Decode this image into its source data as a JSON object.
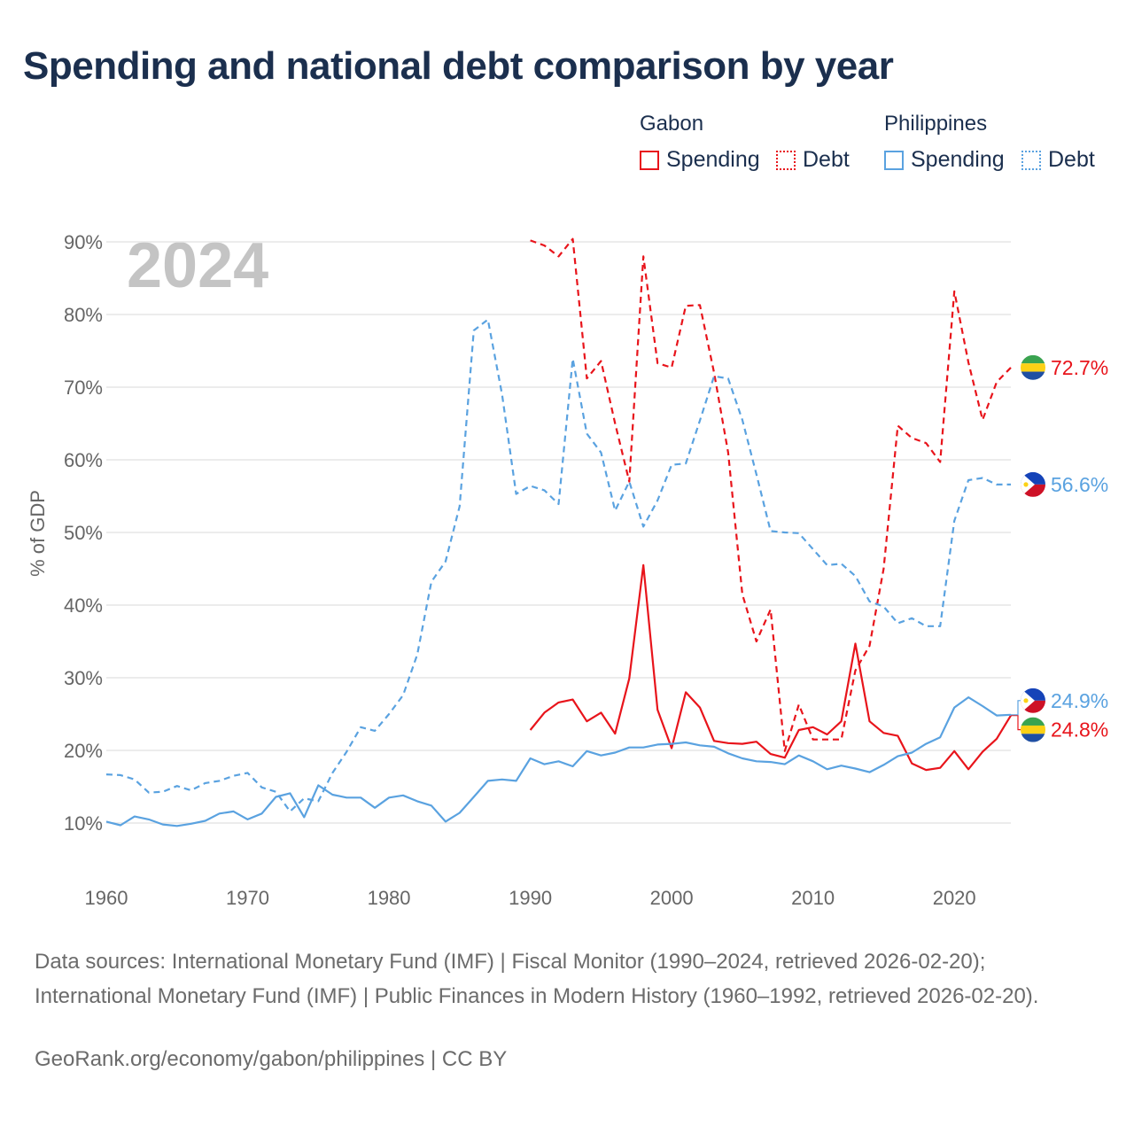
{
  "title": "Spending and national debt comparison by year",
  "legend": {
    "groups": [
      {
        "country": "Gabon",
        "color": "#e8141b",
        "items": [
          {
            "label": "Spending",
            "style": "solid"
          },
          {
            "label": "Debt",
            "style": "dotted"
          }
        ]
      },
      {
        "country": "Philippines",
        "color": "#5aa2e0",
        "items": [
          {
            "label": "Spending",
            "style": "solid"
          },
          {
            "label": "Debt",
            "style": "dotted"
          }
        ]
      }
    ]
  },
  "footer": {
    "sources": "Data sources: International Monetary Fund (IMF) | Fiscal Monitor (1990–2024, retrieved 2026-02-20); International Monetary Fund (IMF) | Public Finances in Modern History (1960–1992, retrieved 2026-02-20).",
    "credit": "GeoRank.org/economy/gabon/philippines | CC BY"
  },
  "chart_data": {
    "type": "line",
    "year_label": "2024",
    "ylabel": "% of GDP",
    "xlim": [
      1960,
      2024
    ],
    "ylim": [
      5,
      95
    ],
    "xticks": [
      1960,
      1970,
      1980,
      1990,
      2000,
      2010,
      2020
    ],
    "xtick_labels": [
      "1960",
      "1970",
      "1980",
      "1990",
      "2000",
      "2010",
      "2020"
    ],
    "yticks": [
      10,
      20,
      30,
      40,
      50,
      60,
      70,
      80,
      90
    ],
    "ytick_labels": [
      "10%",
      "20%",
      "30%",
      "40%",
      "50%",
      "60%",
      "70%",
      "80%",
      "90%"
    ],
    "series": [
      {
        "name": "Gabon Spending",
        "country": "Gabon",
        "metric": "Spending",
        "color": "#e8141b",
        "dash": "solid",
        "flag": "gabon",
        "end_label": "24.8%",
        "x": [
          1990,
          1991,
          1992,
          1993,
          1994,
          1995,
          1996,
          1997,
          1998,
          1999,
          2000,
          2001,
          2002,
          2003,
          2004,
          2005,
          2006,
          2007,
          2008,
          2009,
          2010,
          2011,
          2012,
          2013,
          2014,
          2015,
          2016,
          2017,
          2018,
          2019,
          2020,
          2021,
          2022,
          2023,
          2024
        ],
        "y": [
          22.8,
          25.2,
          26.6,
          27.0,
          24.0,
          25.2,
          22.3,
          29.9,
          45.5,
          25.6,
          20.3,
          28.0,
          25.9,
          21.3,
          21.0,
          20.9,
          21.2,
          19.5,
          19.0,
          22.8,
          23.2,
          22.2,
          24.0,
          34.7,
          24.0,
          22.4,
          22.0,
          18.2,
          17.3,
          17.6,
          19.9,
          17.4,
          19.8,
          21.6,
          24.8
        ]
      },
      {
        "name": "Gabon Debt",
        "country": "Gabon",
        "metric": "Debt",
        "color": "#e8141b",
        "dash": "dashed",
        "flag": "gabon",
        "end_label": "72.7%",
        "x": [
          1990,
          1991,
          1992,
          1993,
          1994,
          1995,
          1996,
          1997,
          1998,
          1999,
          2000,
          2001,
          2002,
          2003,
          2004,
          2005,
          2006,
          2007,
          2008,
          2009,
          2010,
          2011,
          2012,
          2013,
          2014,
          2015,
          2016,
          2017,
          2018,
          2019,
          2020,
          2021,
          2022,
          2023,
          2024
        ],
        "y": [
          90.2,
          89.5,
          88.0,
          90.4,
          71.2,
          73.6,
          65.0,
          57.0,
          88.0,
          73.3,
          72.7,
          81.2,
          81.3,
          72.0,
          61.0,
          41.5,
          35.0,
          39.4,
          19.9,
          26.3,
          21.5,
          21.5,
          21.5,
          31.0,
          34.4,
          45.0,
          64.7,
          63.0,
          62.3,
          59.7,
          83.2,
          73.4,
          65.5,
          70.7,
          72.7
        ]
      },
      {
        "name": "Philippines Spending",
        "country": "Philippines",
        "metric": "Spending",
        "color": "#5aa2e0",
        "dash": "solid",
        "flag": "philippines",
        "end_label": "24.9%",
        "x": [
          1960,
          1961,
          1962,
          1963,
          1964,
          1965,
          1966,
          1967,
          1968,
          1969,
          1970,
          1971,
          1972,
          1973,
          1974,
          1975,
          1976,
          1977,
          1978,
          1979,
          1980,
          1981,
          1982,
          1983,
          1984,
          1985,
          1986,
          1987,
          1988,
          1989,
          1990,
          1991,
          1992,
          1993,
          1994,
          1995,
          1996,
          1997,
          1998,
          1999,
          2000,
          2001,
          2002,
          2003,
          2004,
          2005,
          2006,
          2007,
          2008,
          2009,
          2010,
          2011,
          2012,
          2013,
          2014,
          2015,
          2016,
          2017,
          2018,
          2019,
          2020,
          2021,
          2022,
          2023,
          2024
        ],
        "y": [
          10.2,
          9.7,
          10.9,
          10.5,
          9.8,
          9.6,
          9.9,
          10.3,
          11.3,
          11.6,
          10.5,
          11.3,
          13.6,
          14.1,
          10.8,
          15.2,
          13.9,
          13.5,
          13.5,
          12.1,
          13.5,
          13.8,
          13.0,
          12.4,
          10.2,
          11.4,
          13.6,
          15.8,
          16.0,
          15.8,
          18.9,
          18.1,
          18.5,
          17.8,
          19.9,
          19.3,
          19.7,
          20.4,
          20.4,
          20.8,
          20.9,
          21.1,
          20.7,
          20.5,
          19.6,
          18.9,
          18.5,
          18.4,
          18.1,
          19.3,
          18.5,
          17.4,
          17.9,
          17.5,
          17.0,
          18.0,
          19.2,
          19.7,
          20.9,
          21.8,
          25.9,
          27.3,
          26.1,
          24.8,
          24.9
        ]
      },
      {
        "name": "Philippines Debt",
        "country": "Philippines",
        "metric": "Debt",
        "color": "#5aa2e0",
        "dash": "dashed",
        "flag": "philippines",
        "end_label": "56.6%",
        "x": [
          1960,
          1961,
          1962,
          1963,
          1964,
          1965,
          1966,
          1967,
          1968,
          1969,
          1970,
          1971,
          1972,
          1973,
          1974,
          1975,
          1976,
          1977,
          1978,
          1979,
          1980,
          1981,
          1982,
          1983,
          1984,
          1985,
          1986,
          1987,
          1988,
          1989,
          1990,
          1991,
          1992,
          1993,
          1994,
          1995,
          1996,
          1997,
          1998,
          1999,
          2000,
          2001,
          2002,
          2003,
          2004,
          2005,
          2006,
          2007,
          2008,
          2009,
          2010,
          2011,
          2012,
          2013,
          2014,
          2015,
          2016,
          2017,
          2018,
          2019,
          2020,
          2021,
          2022,
          2023,
          2024
        ],
        "y": [
          16.7,
          16.6,
          16.0,
          14.2,
          14.3,
          15.1,
          14.5,
          15.5,
          15.8,
          16.5,
          16.9,
          14.9,
          14.3,
          11.6,
          13.4,
          13.0,
          16.9,
          19.8,
          23.2,
          22.7,
          25.0,
          27.6,
          33.2,
          43.2,
          46.0,
          53.6,
          77.8,
          79.3,
          69.0,
          55.3,
          56.4,
          55.8,
          53.9,
          73.9,
          63.6,
          61.0,
          53.0,
          57.0,
          50.8,
          54.4,
          59.3,
          59.5,
          65.4,
          71.5,
          71.2,
          65.5,
          58.0,
          50.2,
          50.0,
          49.9,
          47.7,
          45.5,
          45.7,
          44.0,
          40.5,
          39.8,
          37.5,
          38.2,
          37.1,
          37.1,
          51.6,
          57.2,
          57.5,
          56.6,
          56.6
        ]
      }
    ]
  }
}
